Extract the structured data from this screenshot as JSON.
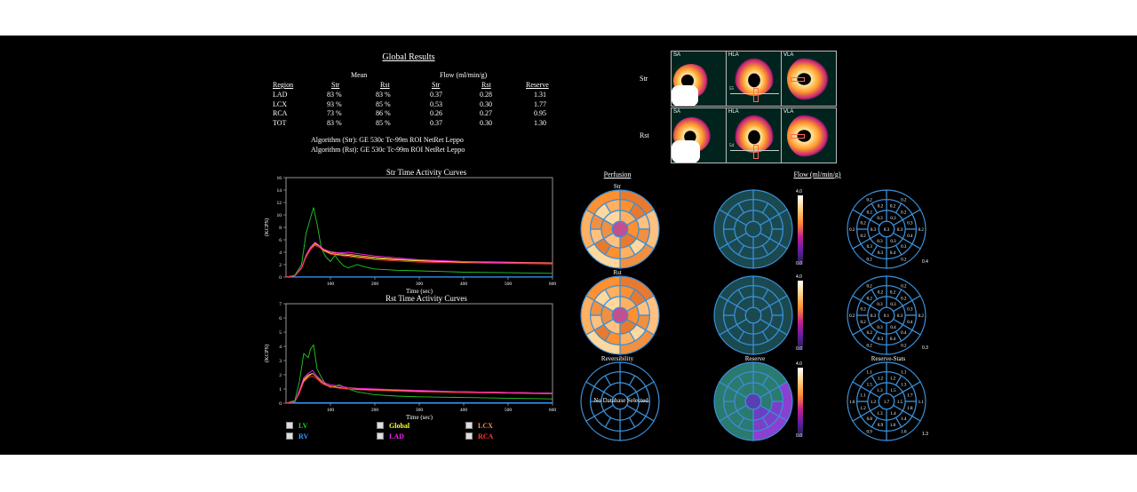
{
  "results": {
    "title": "Global Results",
    "mean_header": "Mean",
    "flow_header": "Flow (ml/min/g)",
    "columns": [
      "Region",
      "Str",
      "Rst",
      "Str",
      "Rst",
      "Reserve"
    ],
    "rows": [
      [
        "LAD",
        "83 %",
        "83 %",
        "0.37",
        "0.28",
        "1.31"
      ],
      [
        "LCX",
        "93 %",
        "85 %",
        "0.53",
        "0.30",
        "1.77"
      ],
      [
        "RCA",
        "73 %",
        "86 %",
        "0.26",
        "0.27",
        "0.95"
      ],
      [
        "TOT",
        "83 %",
        "85 %",
        "0.37",
        "0.30",
        "1.30"
      ]
    ],
    "algo_str": "Algorithm (Str):  GE 530c Tc-99m ROI NetRet Leppo",
    "algo_rst": "Algorithm (Rst):  GE 530c Tc-99m ROI NetRet Leppo"
  },
  "images": {
    "row_labels": [
      "Str",
      "Rst"
    ],
    "view_labels": [
      "SA",
      "HLA",
      "VLA"
    ],
    "marker_str": "55",
    "marker_rst": "54"
  },
  "panels": {
    "perfusion": "Perfusion",
    "flow": "Flow (ml/min/g)",
    "str": "Str",
    "rst": "Rst",
    "reversibility": "Reversibility",
    "no_db": "No Database Selected",
    "reserve": "Reserve",
    "reserve_stats": "Reserve-Stats"
  },
  "colorbars": {
    "flow_str": {
      "max": "4.0",
      "min": "0.0"
    },
    "flow_rst": {
      "max": "4.0",
      "min": "0.0"
    },
    "reserve": {
      "max": "4.0",
      "min": "0.0"
    }
  },
  "bullseye_values": {
    "flow_str": {
      "rings": [
        [
          "0.3"
        ],
        [
          "0.3",
          "0.3",
          "0.3",
          "0.3",
          "0.3",
          "0.3"
        ],
        [
          "0.2",
          "0.2",
          "0.3",
          "0.4",
          "0.3",
          "0.4",
          "0.3",
          "0.3",
          "0.2",
          "0.2",
          "0.2",
          "0.2"
        ],
        [
          "0.2",
          "0.2",
          "0.2",
          "0.2",
          "0.2",
          "0.2"
        ]
      ],
      "total": "0.4"
    },
    "flow_rst": {
      "rings": [
        [
          "0.1"
        ],
        [
          "0.3",
          "0.3",
          "0.4",
          "0.3",
          "0.3",
          "0.3"
        ],
        [
          "0.2",
          "0.2",
          "0.3",
          "0.4",
          "0.4",
          "0.4",
          "0.3",
          "0.2",
          "0.2",
          "0.2",
          "0.2",
          "0.2"
        ],
        [
          "0.2",
          "0.2",
          "0.2",
          "0.2",
          "0.2",
          "0.2"
        ]
      ],
      "total": "0.3"
    },
    "reserve_stats": {
      "rings": [
        [
          "1.7"
        ],
        [
          "1.5",
          "1.5",
          "1.4",
          "1.3",
          "1.2",
          "1.3"
        ],
        [
          "1.2",
          "1.3",
          "1.7",
          "1.8",
          "1.4",
          "1.0",
          "0.9",
          "0.8",
          "1.2",
          "1.1",
          "1.5",
          "1.2"
        ],
        [
          "1.1",
          "1.1",
          "1.0",
          "0.9",
          "1.0",
          "1.1"
        ]
      ],
      "total": "1.3"
    }
  },
  "str_chart": {
    "title": "Str Time Activity Curves",
    "ylabel": "(KCPS)",
    "xlabel": "Time (sec)",
    "yticks": [
      "0",
      "2",
      "4",
      "6",
      "8",
      "10",
      "12",
      "14",
      "16"
    ],
    "xticks": [
      "100",
      "200",
      "300",
      "400",
      "500",
      "600"
    ]
  },
  "rst_chart": {
    "title": "Rst Time Activity Curves",
    "ylabel": "(KCPS)",
    "xlabel": "Time (sec)",
    "yticks": [
      "0",
      "1",
      "2",
      "3",
      "4",
      "5",
      "6",
      "7"
    ],
    "xticks": [
      "100",
      "200",
      "300",
      "400",
      "500",
      "600"
    ]
  },
  "legend": [
    {
      "label": "LV",
      "color": "#22cc22"
    },
    {
      "label": "Global",
      "color": "#ffff33"
    },
    {
      "label": "LCX",
      "color": "#ff8844"
    },
    {
      "label": "RV",
      "color": "#3399ff"
    },
    {
      "label": "LAD",
      "color": "#ee22ee"
    },
    {
      "label": "RCA",
      "color": "#ff3333"
    }
  ],
  "chart_data": [
    {
      "type": "line",
      "title": "Str Time Activity Curves",
      "xlabel": "Time (sec)",
      "ylabel": "(KCPS)",
      "xlim": [
        0,
        600
      ],
      "ylim": [
        0,
        16
      ],
      "series": [
        {
          "name": "LV",
          "color": "#22cc22",
          "x": [
            0,
            20,
            35,
            45,
            55,
            62,
            70,
            80,
            90,
            100,
            110,
            120,
            130,
            140,
            160,
            180,
            200,
            250,
            300,
            400,
            500,
            600
          ],
          "y": [
            0,
            0.3,
            2,
            7,
            9.5,
            11.2,
            8.5,
            4.5,
            3.2,
            2.5,
            3.5,
            2.5,
            1.8,
            1.5,
            2,
            1.6,
            1.3,
            1.1,
            1,
            0.8,
            0.7,
            0.6
          ]
        },
        {
          "name": "Global",
          "color": "#ffff33",
          "x": [
            0,
            20,
            35,
            45,
            55,
            65,
            75,
            85,
            100,
            120,
            140,
            160,
            200,
            250,
            300,
            400,
            500,
            600
          ],
          "y": [
            0,
            0.2,
            1.5,
            3.5,
            4.8,
            5.5,
            5,
            4.3,
            3.8,
            3.6,
            3.5,
            3.3,
            3,
            2.8,
            2.6,
            2.4,
            2.3,
            2.2
          ]
        },
        {
          "name": "LCX",
          "color": "#ff8844",
          "x": [
            0,
            20,
            35,
            45,
            55,
            65,
            75,
            85,
            100,
            120,
            140,
            160,
            200,
            250,
            300,
            400,
            500,
            600
          ],
          "y": [
            0,
            0.2,
            1.5,
            3.3,
            4.6,
            5.3,
            5,
            4.4,
            4,
            3.8,
            3.7,
            3.5,
            3.2,
            2.9,
            2.7,
            2.5,
            2.4,
            2.3
          ]
        },
        {
          "name": "RV",
          "color": "#3399ff",
          "x": [
            0,
            600
          ],
          "y": [
            0.05,
            0.05
          ]
        },
        {
          "name": "LAD",
          "color": "#ee22ee",
          "x": [
            0,
            20,
            35,
            45,
            55,
            65,
            75,
            85,
            100,
            120,
            140,
            160,
            200,
            250,
            300,
            400,
            500,
            600
          ],
          "y": [
            0,
            0.2,
            1.6,
            3.4,
            4.8,
            5.6,
            5.1,
            4.5,
            4.1,
            3.9,
            4,
            3.8,
            3.4,
            3.1,
            2.8,
            2.5,
            2.3,
            2.2
          ]
        },
        {
          "name": "RCA",
          "color": "#ff3333",
          "x": [
            0,
            20,
            35,
            45,
            55,
            65,
            75,
            85,
            100,
            120,
            140,
            160,
            200,
            250,
            300,
            400,
            500,
            600
          ],
          "y": [
            0,
            0.2,
            1.4,
            3.2,
            4.4,
            5.1,
            4.8,
            4.2,
            3.7,
            3.5,
            3.3,
            3.1,
            2.8,
            2.6,
            2.4,
            2.3,
            2.2,
            2.1
          ]
        }
      ]
    },
    {
      "type": "line",
      "title": "Rst Time Activity Curves",
      "xlabel": "Time (sec)",
      "ylabel": "(KCPS)",
      "xlim": [
        0,
        600
      ],
      "ylim": [
        0,
        7
      ],
      "series": [
        {
          "name": "LV",
          "color": "#22cc22",
          "x": [
            0,
            20,
            30,
            40,
            50,
            55,
            62,
            70,
            80,
            90,
            100,
            110,
            120,
            140,
            160,
            180,
            200,
            250,
            300,
            400,
            500,
            600
          ],
          "y": [
            0,
            0.2,
            1.5,
            3.5,
            3.2,
            3.8,
            4.1,
            2.4,
            1.8,
            1.3,
            1.1,
            1.2,
            1.3,
            1,
            0.8,
            0.7,
            0.6,
            0.5,
            0.45,
            0.4,
            0.35,
            0.3
          ]
        },
        {
          "name": "Global",
          "color": "#ffff33",
          "x": [
            0,
            20,
            30,
            40,
            50,
            60,
            70,
            80,
            90,
            100,
            120,
            140,
            160,
            200,
            250,
            300,
            400,
            500,
            600
          ],
          "y": [
            0,
            0.1,
            0.8,
            1.6,
            1.9,
            2.1,
            1.8,
            1.5,
            1.3,
            1.2,
            1.1,
            1,
            1,
            0.95,
            0.9,
            0.85,
            0.8,
            0.75,
            0.7
          ]
        },
        {
          "name": "LCX",
          "color": "#ff8844",
          "x": [
            0,
            20,
            30,
            40,
            50,
            60,
            70,
            80,
            90,
            100,
            120,
            140,
            160,
            200,
            250,
            300,
            400,
            500,
            600
          ],
          "y": [
            0,
            0.1,
            0.8,
            1.7,
            2,
            2.1,
            1.8,
            1.5,
            1.3,
            1.2,
            1.1,
            1,
            1,
            0.95,
            0.9,
            0.85,
            0.8,
            0.75,
            0.7
          ]
        },
        {
          "name": "RV",
          "color": "#3399ff",
          "x": [
            0,
            600
          ],
          "y": [
            0.03,
            0.03
          ]
        },
        {
          "name": "LAD",
          "color": "#ee22ee",
          "x": [
            0,
            20,
            30,
            40,
            50,
            60,
            70,
            80,
            90,
            100,
            120,
            140,
            160,
            200,
            250,
            300,
            400,
            500,
            600
          ],
          "y": [
            0,
            0.1,
            0.9,
            1.8,
            2.1,
            2.3,
            1.9,
            1.6,
            1.4,
            1.3,
            1.2,
            1.1,
            1.05,
            1,
            0.95,
            0.9,
            0.8,
            0.75,
            0.7
          ]
        },
        {
          "name": "RCA",
          "color": "#ff3333",
          "x": [
            0,
            20,
            30,
            40,
            50,
            60,
            70,
            80,
            90,
            100,
            120,
            140,
            160,
            200,
            250,
            300,
            400,
            500,
            600
          ],
          "y": [
            0,
            0.1,
            0.7,
            1.5,
            1.8,
            1.9,
            1.7,
            1.4,
            1.25,
            1.15,
            1.05,
            1,
            0.95,
            0.9,
            0.85,
            0.8,
            0.75,
            0.7,
            0.65
          ]
        }
      ]
    }
  ]
}
